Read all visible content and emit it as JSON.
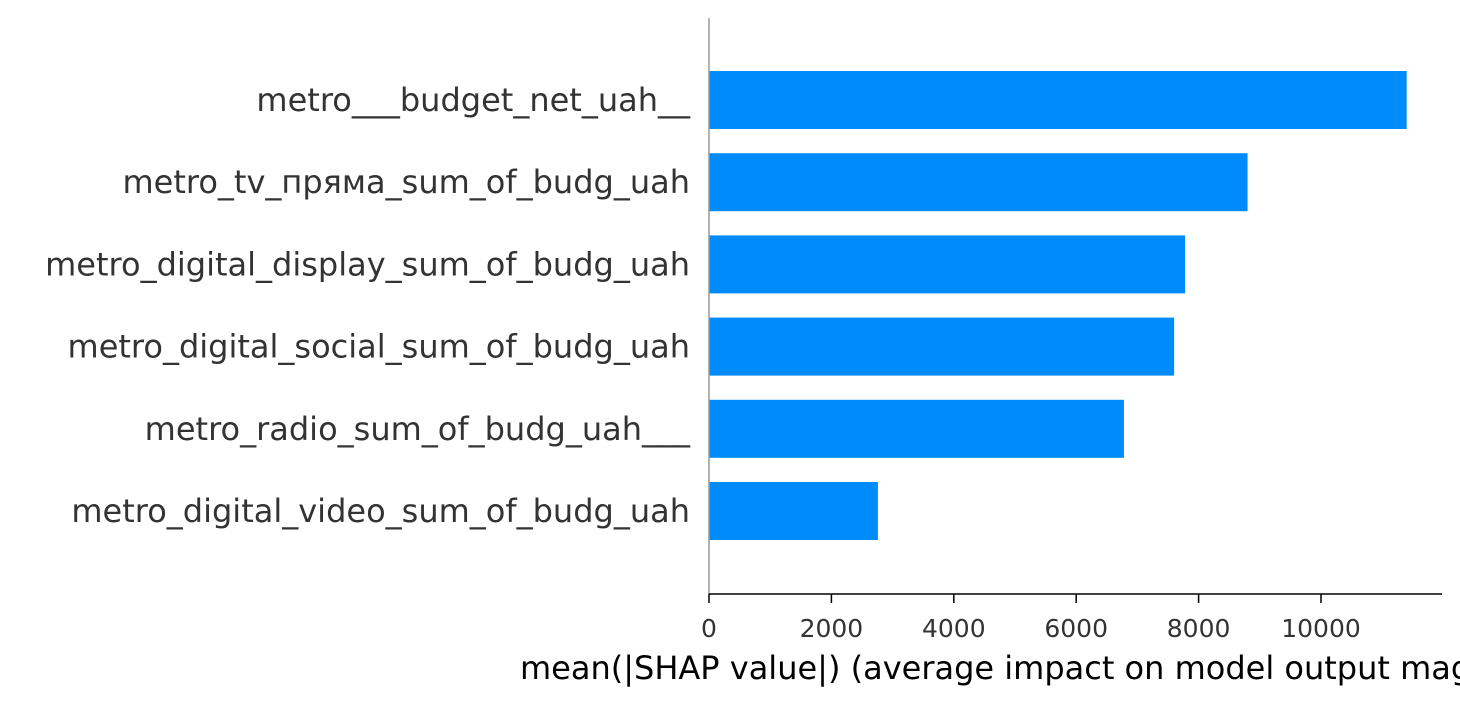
{
  "chart_data": {
    "type": "bar",
    "orientation": "horizontal",
    "title": "",
    "xlabel": "mean(|SHAP value|) (average impact on model output magnitude)",
    "ylabel": "",
    "categories": [
      "metro___budget_net_uah__",
      "metro_tv_пряма_sum_of_budg_uah",
      "metro_digital_display_sum_of_budg_uah",
      "metro_digital_social_sum_of_budg_uah",
      "metro_radio_sum_of_budg_uah___",
      "metro_digital_video_sum_of_budg_uah"
    ],
    "values": [
      11400,
      8800,
      7780,
      7600,
      6780,
      2760
    ],
    "xlim": [
      0,
      12000
    ],
    "xticks": [
      0,
      2000,
      4000,
      6000,
      8000,
      10000
    ],
    "xtick_labels": [
      "0",
      "2000",
      "4000",
      "6000",
      "8000",
      "10000"
    ],
    "grid": false,
    "bar_color": "#008bfb"
  }
}
